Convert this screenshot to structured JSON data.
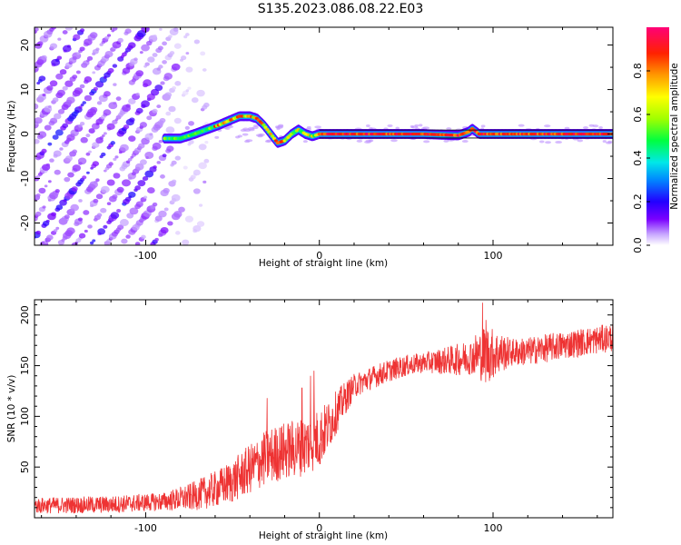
{
  "title": "S135.2023.086.08.22.E03",
  "colors": {
    "snr_line": "#ee3333",
    "ridge_outline": "#000000",
    "background": "#ffffff"
  },
  "chart_data": [
    {
      "type": "heatmap",
      "xlabel": "Height of straight line (km)",
      "ylabel": "Frequency (Hz)",
      "xlim": [
        -164,
        169
      ],
      "ylim": [
        -25,
        24
      ],
      "x_ticks": [
        -100,
        0,
        100
      ],
      "x_tick_labels": [
        "-100",
        "0",
        "100"
      ],
      "y_ticks": [
        -20,
        -10,
        0,
        10,
        20
      ],
      "y_tick_labels": [
        "-20",
        "-10",
        "0",
        "10",
        "20"
      ],
      "colorbar": {
        "label": "Normalized spectral amplitude",
        "range": [
          0,
          1
        ],
        "ticks": [
          0.0,
          0.2,
          0.4,
          0.6,
          0.8
        ],
        "tick_labels": [
          "0.0",
          "0.2",
          "0.4",
          "0.6",
          "0.8"
        ]
      },
      "ridge": {
        "description_points_x": [
          -89,
          -80,
          -72,
          -65,
          -58,
          -52,
          -46,
          -40,
          -36,
          -32,
          -28,
          -24,
          -20,
          -16,
          -12,
          -8,
          -4,
          0,
          20,
          40,
          60,
          80,
          86,
          88,
          92,
          110,
          130,
          150,
          169
        ],
        "description_points_y": [
          -1,
          -1,
          0,
          1,
          2,
          3,
          4,
          4,
          3.5,
          2,
          0,
          -2,
          -1.5,
          0,
          1,
          0,
          -0.5,
          0,
          0,
          0,
          0,
          -0.3,
          0.5,
          1.2,
          0,
          0,
          0,
          0,
          0
        ]
      },
      "aliased_streaks": {
        "x_range": [
          -164,
          -65
        ],
        "slope_hz_per_km": 0.47
      }
    },
    {
      "type": "line",
      "xlabel": "Height of straight line (km)",
      "ylabel": "SNR (10 * v/v)",
      "xlim": [
        -164,
        169
      ],
      "ylim": [
        0,
        215
      ],
      "x_ticks": [
        -100,
        0,
        100
      ],
      "x_tick_labels": [
        "-100",
        "0",
        "100"
      ],
      "y_ticks": [
        50,
        100,
        150,
        200
      ],
      "y_tick_labels": [
        "50",
        "100",
        "150",
        "200"
      ],
      "series": [
        {
          "name": "SNR",
          "trend_x": [
            -164,
            -120,
            -90,
            -75,
            -60,
            -50,
            -40,
            -30,
            -20,
            -10,
            0,
            5,
            10,
            15,
            20,
            30,
            40,
            50,
            60,
            80,
            90,
            100,
            120,
            140,
            169
          ],
          "trend_y": [
            12,
            13,
            16,
            20,
            28,
            36,
            48,
            60,
            66,
            70,
            78,
            90,
            105,
            118,
            130,
            138,
            145,
            150,
            153,
            156,
            160,
            162,
            164,
            170,
            178
          ],
          "noise_x": [
            -164,
            -90,
            -60,
            -30,
            0,
            20,
            60,
            88,
            96,
            110,
            169
          ],
          "noise_amp": [
            8,
            9,
            18,
            28,
            30,
            12,
            10,
            18,
            30,
            14,
            14
          ],
          "spikes_x": [
            -30,
            -10,
            -5,
            -3,
            90,
            94,
            96
          ],
          "spikes_y": [
            118,
            128,
            140,
            145,
            180,
            212,
            195
          ]
        }
      ]
    }
  ]
}
